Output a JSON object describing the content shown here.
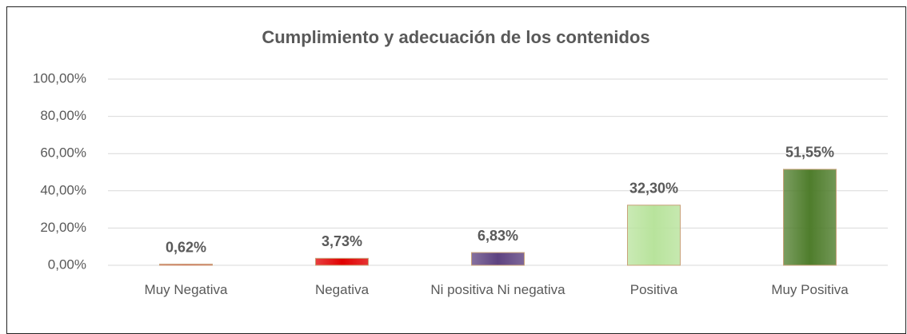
{
  "chart_data": {
    "type": "bar",
    "title": "Cumplimiento y adecuación de los contenidos",
    "categories": [
      "Muy Negativa",
      "Negativa",
      "Ni positiva Ni negativa",
      "Positiva",
      "Muy Positiva"
    ],
    "values": [
      0.62,
      3.73,
      6.83,
      32.3,
      51.55
    ],
    "value_labels": [
      "0,62%",
      "3,73%",
      "6,83%",
      "32,30%",
      "51,55%"
    ],
    "colors": [
      "#e04848",
      "#e00000",
      "#5e4280",
      "#b8e39c",
      "#4f7d2c"
    ],
    "ylim": [
      0,
      100
    ],
    "yticks": [
      {
        "value": 0,
        "label": "0,00%"
      },
      {
        "value": 20,
        "label": "20,00%"
      },
      {
        "value": 40,
        "label": "40,00%"
      },
      {
        "value": 60,
        "label": "60,00%"
      },
      {
        "value": 80,
        "label": "80,00%"
      },
      {
        "value": 100,
        "label": "100,00%"
      }
    ],
    "grid": true
  }
}
